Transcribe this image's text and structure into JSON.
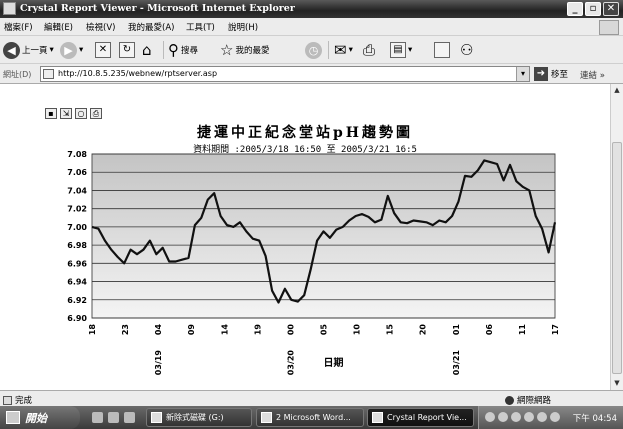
{
  "window": {
    "title": "Crystal Report Viewer - Microsoft Internet Explorer"
  },
  "menu": [
    "檔案(F)",
    "編輯(E)",
    "檢視(V)",
    "我的最愛(A)",
    "工具(T)",
    "說明(H)"
  ],
  "toolbar": {
    "back_label": "上一頁",
    "search_label": "搜尋",
    "favorites_label": "我的最愛"
  },
  "address": {
    "label": "網址(D)",
    "url": "http://10.8.5.235/webnew/rptserver.asp",
    "go_label": "移至",
    "links_label": "連結"
  },
  "status": {
    "text": "完成",
    "zone": "網際網路"
  },
  "taskbar": {
    "start_label": "開始",
    "items": [
      "新除式磁碟 (G:)",
      "2 Microsoft Word...",
      "Crystal Report Vie..."
    ],
    "clock": "下午 04:54"
  },
  "chart_data": {
    "type": "line",
    "title": "捷運中正紀念堂站pH趨勢圖",
    "subtitle": "資料期間 :2005/3/18 16:50 至 2005/3/21 16:5",
    "xlabel": "日期",
    "ylabel": "",
    "ylim": [
      6.9,
      7.08
    ],
    "yticks": [
      "7.08",
      "7.06",
      "7.04",
      "7.02",
      "7.00",
      "6.98",
      "6.96",
      "6.94",
      "6.92",
      "6.90"
    ],
    "xticks": [
      "18",
      "23",
      "04",
      "09",
      "14",
      "19",
      "00",
      "05",
      "10",
      "15",
      "20",
      "01",
      "06",
      "11",
      "17"
    ],
    "date_labels": [
      "03/19",
      "03/20",
      "03/21"
    ],
    "grid": true,
    "line_color": "#111111",
    "series": [
      {
        "values": [
          7.0,
          6.998,
          6.985,
          6.975,
          6.967,
          6.96,
          6.975,
          6.97,
          6.975,
          6.985,
          6.97,
          6.977,
          6.962,
          6.962,
          6.964,
          6.966,
          7.002,
          7.01,
          7.03,
          7.037,
          7.012,
          7.002,
          7.0,
          7.005,
          6.995,
          6.987,
          6.985,
          6.968,
          6.93,
          6.917,
          6.932,
          6.92,
          6.918,
          6.925,
          6.953,
          6.985,
          6.995,
          6.988,
          6.997,
          7.0,
          7.007,
          7.012,
          7.014,
          7.011,
          7.005,
          7.008,
          7.034,
          7.015,
          7.005,
          7.004,
          7.007,
          7.006,
          7.005,
          7.002,
          7.007,
          7.005,
          7.012,
          7.028,
          7.056,
          7.055,
          7.062,
          7.073,
          7.071,
          7.069,
          7.051,
          7.068,
          7.05,
          7.044,
          7.04,
          7.012,
          6.998,
          6.972,
          7.005
        ]
      }
    ]
  }
}
